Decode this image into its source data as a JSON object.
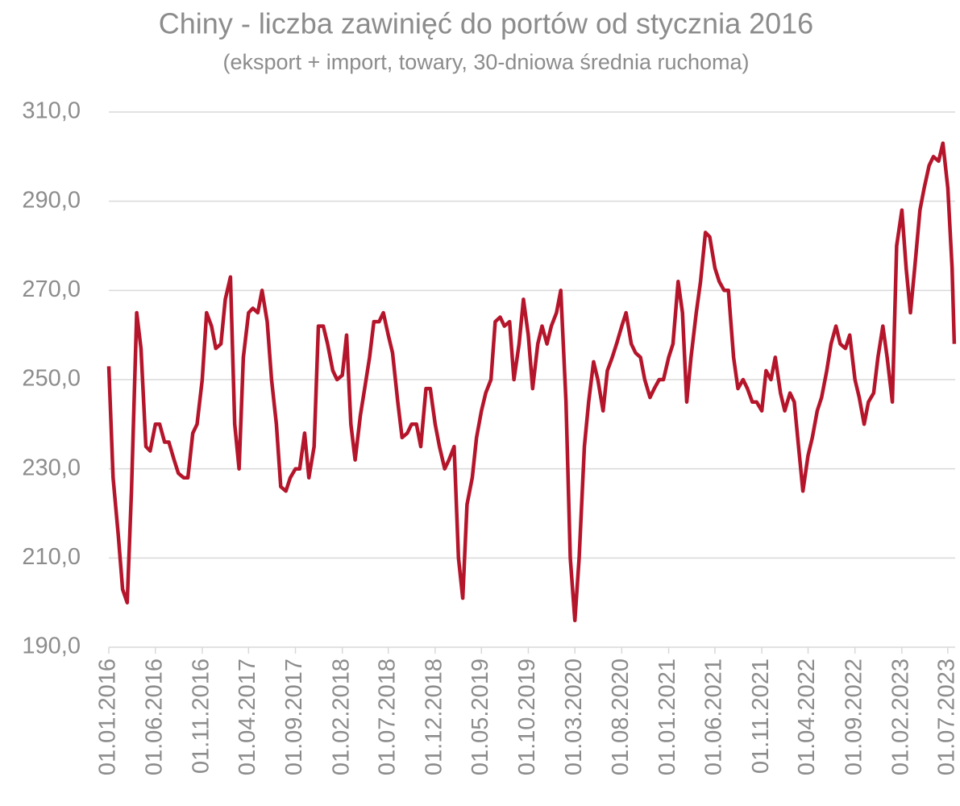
{
  "chart_data": {
    "type": "line",
    "title": "Chiny - liczba zawinięć do portów od stycznia 2016",
    "subtitle": "(eksport + import, towary, 30-dniowa średnia ruchoma)",
    "x": [
      "01.01.2016",
      "15.01.2016",
      "01.02.2016",
      "15.02.2016",
      "01.03.2016",
      "15.03.2016",
      "01.04.2016",
      "15.04.2016",
      "01.05.2016",
      "15.05.2016",
      "01.06.2016",
      "15.06.2016",
      "01.07.2016",
      "15.07.2016",
      "01.08.2016",
      "15.08.2016",
      "01.09.2016",
      "15.09.2016",
      "01.10.2016",
      "15.10.2016",
      "01.11.2016",
      "15.11.2016",
      "01.12.2016",
      "15.12.2016",
      "01.01.2017",
      "15.01.2017",
      "01.02.2017",
      "15.02.2017",
      "01.03.2017",
      "15.03.2017",
      "01.04.2017",
      "15.04.2017",
      "01.05.2017",
      "15.05.2017",
      "01.06.2017",
      "15.06.2017",
      "01.07.2017",
      "15.07.2017",
      "01.08.2017",
      "15.08.2017",
      "01.09.2017",
      "15.09.2017",
      "01.10.2017",
      "15.10.2017",
      "01.11.2017",
      "15.11.2017",
      "01.12.2017",
      "15.12.2017",
      "01.01.2018",
      "15.01.2018",
      "01.02.2018",
      "15.02.2018",
      "01.03.2018",
      "15.03.2018",
      "01.04.2018",
      "15.04.2018",
      "01.05.2018",
      "15.05.2018",
      "01.06.2018",
      "15.06.2018",
      "01.07.2018",
      "15.07.2018",
      "01.08.2018",
      "15.08.2018",
      "01.09.2018",
      "15.09.2018",
      "01.10.2018",
      "15.10.2018",
      "01.11.2018",
      "15.11.2018",
      "01.12.2018",
      "15.12.2018",
      "01.01.2019",
      "15.01.2019",
      "01.02.2019",
      "15.02.2019",
      "01.03.2019",
      "15.03.2019",
      "01.04.2019",
      "15.04.2019",
      "01.05.2019",
      "15.05.2019",
      "01.06.2019",
      "15.06.2019",
      "01.07.2019",
      "15.07.2019",
      "01.08.2019",
      "15.08.2019",
      "01.09.2019",
      "15.09.2019",
      "01.10.2019",
      "15.10.2019",
      "01.11.2019",
      "15.11.2019",
      "01.12.2019",
      "15.12.2019",
      "01.01.2020",
      "15.01.2020",
      "01.02.2020",
      "15.02.2020",
      "01.03.2020",
      "15.03.2020",
      "01.04.2020",
      "15.04.2020",
      "01.05.2020",
      "15.05.2020",
      "01.06.2020",
      "15.06.2020",
      "01.07.2020",
      "15.07.2020",
      "01.08.2020",
      "15.08.2020",
      "01.09.2020",
      "15.09.2020",
      "01.10.2020",
      "15.10.2020",
      "01.11.2020",
      "15.11.2020",
      "01.12.2020",
      "15.12.2020",
      "01.01.2021",
      "15.01.2021",
      "01.02.2021",
      "15.02.2021",
      "01.03.2021",
      "15.03.2021",
      "01.04.2021",
      "15.04.2021",
      "01.05.2021",
      "15.05.2021",
      "01.06.2021",
      "15.06.2021",
      "01.07.2021",
      "15.07.2021",
      "01.08.2021",
      "15.08.2021",
      "01.09.2021",
      "15.09.2021",
      "01.10.2021",
      "15.10.2021",
      "01.11.2021",
      "15.11.2021",
      "01.12.2021",
      "15.12.2021",
      "01.01.2022",
      "15.01.2022",
      "01.02.2022",
      "15.02.2022",
      "01.03.2022",
      "15.03.2022",
      "01.04.2022",
      "15.04.2022",
      "01.05.2022",
      "15.05.2022",
      "01.06.2022",
      "15.06.2022",
      "01.07.2022",
      "15.07.2022",
      "01.08.2022",
      "15.08.2022",
      "01.09.2022",
      "15.09.2022",
      "01.10.2022",
      "15.10.2022",
      "01.11.2022",
      "15.11.2022",
      "01.12.2022",
      "15.12.2022",
      "01.01.2023",
      "15.01.2023",
      "01.02.2023",
      "15.02.2023",
      "01.03.2023",
      "15.03.2023",
      "01.04.2023",
      "15.04.2023",
      "01.05.2023",
      "15.05.2023",
      "01.06.2023",
      "15.06.2023",
      "01.07.2023",
      "15.07.2023",
      "22.07.2023"
    ],
    "series": [
      {
        "name": "Chiny",
        "color": "#b5152b",
        "values": [
          253,
          228,
          215,
          203,
          200,
          225,
          265,
          257,
          235,
          234,
          240,
          240,
          236,
          236,
          232,
          229,
          228,
          228,
          238,
          240,
          250,
          265,
          262,
          257,
          258,
          268,
          273,
          240,
          230,
          255,
          265,
          266,
          265,
          270,
          263,
          250,
          240,
          226,
          225,
          228,
          230,
          230,
          238,
          228,
          235,
          262,
          262,
          258,
          252,
          250,
          251,
          260,
          240,
          232,
          242,
          248,
          255,
          263,
          263,
          265,
          260,
          256,
          245,
          237,
          238,
          240,
          240,
          235,
          248,
          248,
          240,
          235,
          230,
          232,
          235,
          210,
          201,
          222,
          228,
          237,
          243,
          247,
          250,
          263,
          264,
          262,
          263,
          250,
          258,
          268,
          260,
          248,
          258,
          262,
          258,
          262,
          265,
          270,
          245,
          210,
          196,
          210,
          235,
          245,
          254,
          250,
          243,
          252,
          255,
          258,
          262,
          265,
          258,
          256,
          255,
          250,
          246,
          248,
          250,
          250,
          255,
          258,
          272,
          265,
          245,
          255,
          265,
          272,
          283,
          282,
          275,
          272,
          270,
          270,
          255,
          248,
          250,
          248,
          245,
          245,
          243,
          252,
          250,
          255,
          247,
          243,
          247,
          245,
          235,
          225,
          233,
          237,
          243,
          246,
          252,
          258,
          262,
          258,
          257,
          260,
          250,
          246,
          240,
          245,
          247,
          255,
          262,
          255,
          245,
          280,
          288,
          275,
          265,
          275,
          288,
          293,
          298,
          300,
          299,
          303,
          293,
          275,
          258
        ]
      }
    ],
    "xlim": [
      "01.01.2016",
      "25.07.2023"
    ],
    "xticks": [
      "01.01.2016",
      "01.06.2016",
      "01.11.2016",
      "01.04.2017",
      "01.09.2017",
      "01.02.2018",
      "01.07.2018",
      "01.12.2018",
      "01.05.2019",
      "01.10.2019",
      "01.03.2020",
      "01.08.2020",
      "01.01.2021",
      "01.06.2021",
      "01.11.2021",
      "01.04.2022",
      "01.09.2022",
      "01.02.2023",
      "01.07.2023"
    ],
    "ylim": [
      190,
      310
    ],
    "yticks": [
      {
        "value": 190,
        "label": "190,0"
      },
      {
        "value": 210,
        "label": "210,0"
      },
      {
        "value": 230,
        "label": "230,0"
      },
      {
        "value": 250,
        "label": "250,0"
      },
      {
        "value": 270,
        "label": "270,0"
      },
      {
        "value": 290,
        "label": "290,0"
      },
      {
        "value": 310,
        "label": "310,0"
      }
    ],
    "grid": true
  }
}
